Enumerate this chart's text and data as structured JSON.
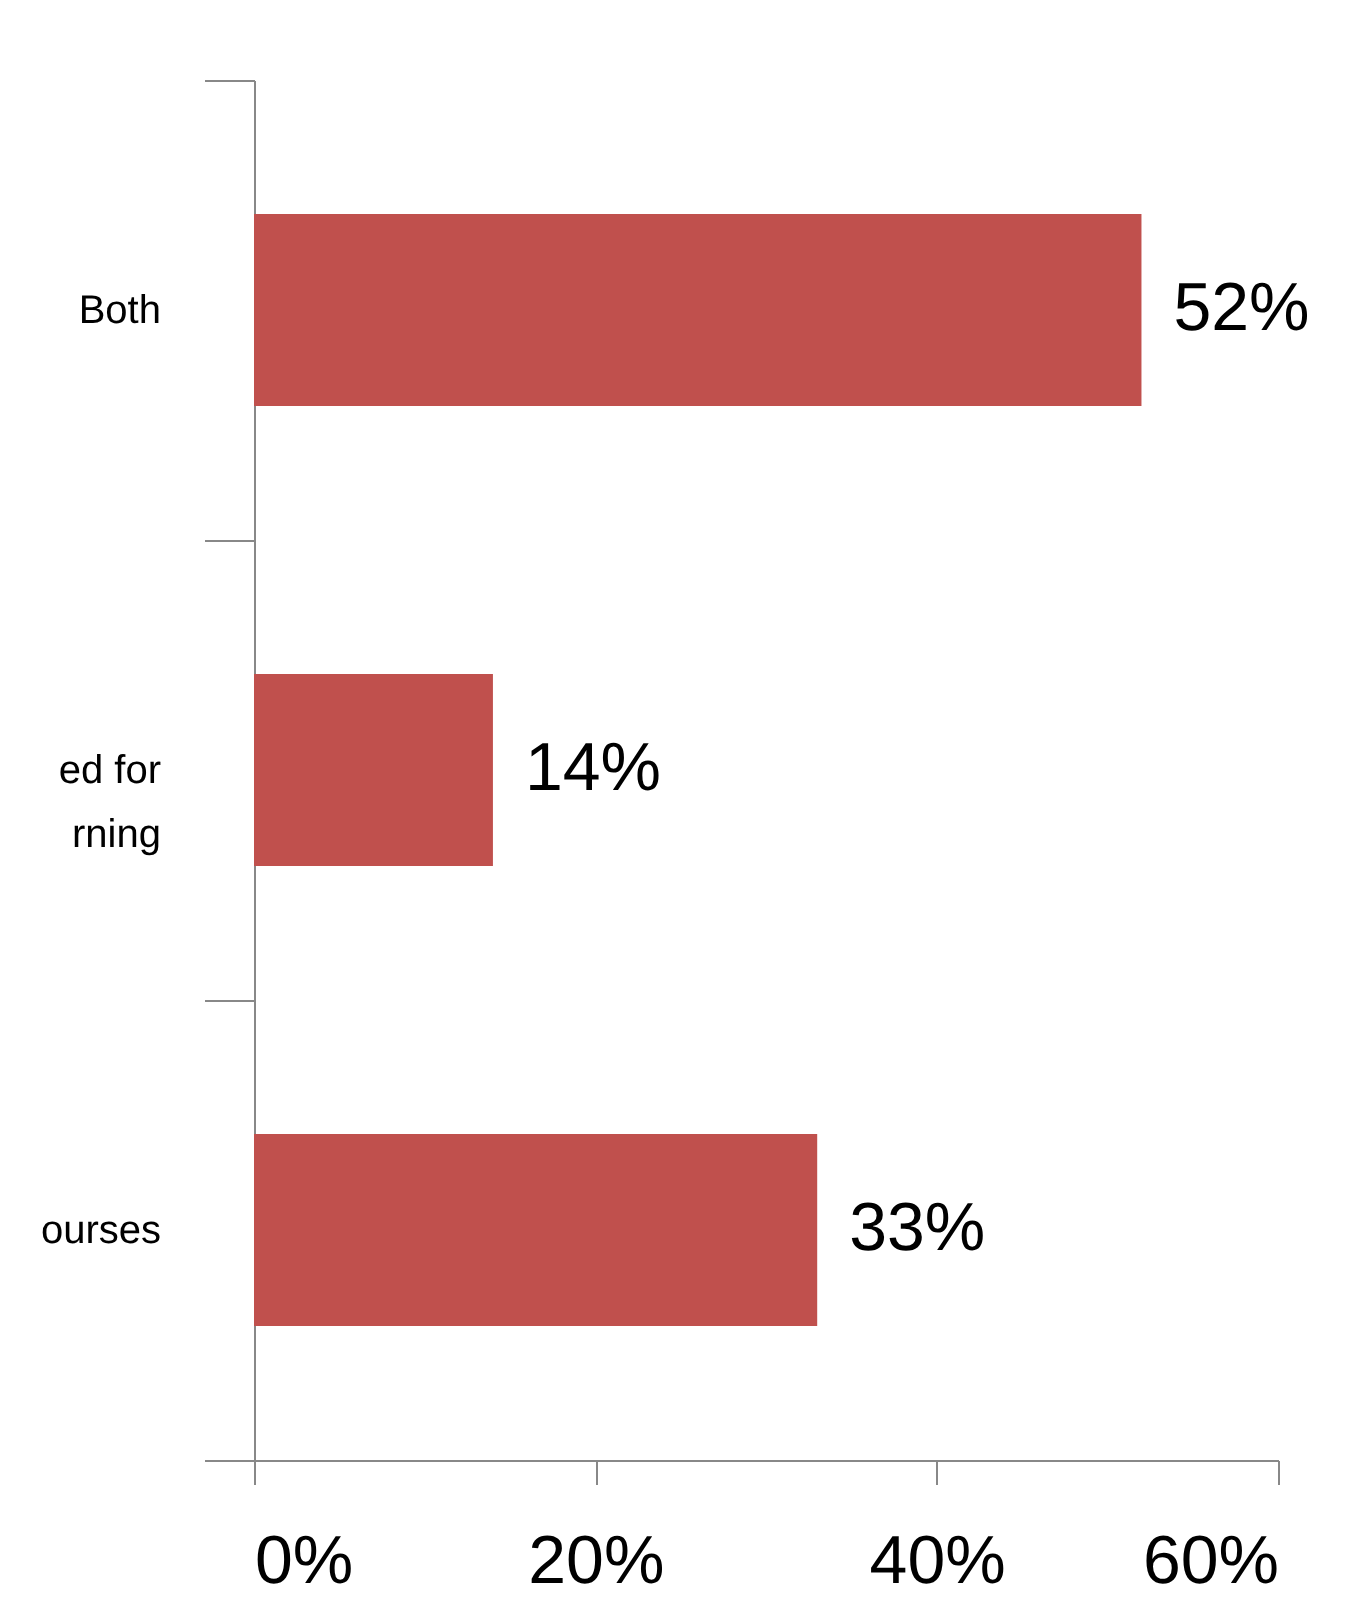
{
  "chart_data": {
    "type": "bar",
    "orientation": "horizontal",
    "categories": [
      "Both",
      "ed for\nrning",
      "ourses"
    ],
    "values": [
      52,
      14,
      33
    ],
    "value_labels": [
      "52%",
      "14%",
      "33%"
    ],
    "color": "#c0504d",
    "xlim": [
      0,
      60
    ],
    "xticks": [
      {
        "value": 0,
        "label": "0%"
      },
      {
        "value": 20,
        "label": "20%"
      },
      {
        "value": 40,
        "label": "40%"
      },
      {
        "value": 60,
        "label": "60%"
      }
    ],
    "grid": false
  }
}
